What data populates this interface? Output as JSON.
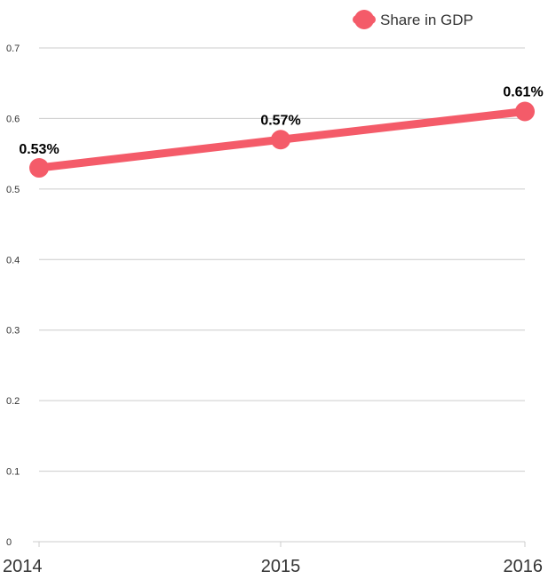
{
  "chart_data": {
    "type": "line",
    "categories": [
      "2014",
      "2015",
      "2016"
    ],
    "series": [
      {
        "name": "Share in GDP",
        "values": [
          0.53,
          0.57,
          0.61
        ],
        "data_labels": [
          "0.53%",
          "0.57%",
          "0.61%"
        ],
        "color": "#f45b69"
      }
    ],
    "y_ticks": [
      "0",
      "0.1",
      "0.2",
      "0.3",
      "0.4",
      "0.5",
      "0.6",
      "0.7"
    ],
    "ylim": [
      0,
      0.7
    ],
    "grid": true,
    "legend_position": "top-right"
  }
}
